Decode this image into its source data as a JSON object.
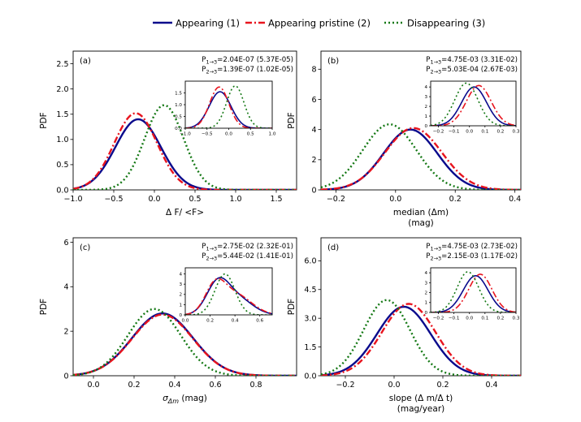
{
  "legend": {
    "placement": "top-center",
    "entries": [
      {
        "label": "Appearing (1)",
        "color": "#0a0a8c",
        "style": "solid"
      },
      {
        "label": "Appearing pristine (2)",
        "color": "#e8141e",
        "style": "dashdot"
      },
      {
        "label": "Disappearing (3)",
        "color": "#147814",
        "style": "dotted"
      }
    ]
  },
  "chart_data": [
    {
      "id": "a",
      "type": "line",
      "panel_label": "(a)",
      "xlabel": "Δ F/ <F>",
      "xlabel2": "",
      "ylabel": "PDF",
      "xlim": [
        -1.0,
        1.75
      ],
      "ylim": [
        0,
        2.75
      ],
      "xticks": [
        -1.0,
        -0.5,
        0.0,
        0.5,
        1.0,
        1.5
      ],
      "xtick_labels": [
        "−1.0",
        "−0.5",
        "0.0",
        "0.5",
        "1.0",
        "1.5"
      ],
      "yticks": [
        0,
        0.5,
        1.0,
        1.5,
        2.0,
        2.5
      ],
      "ytick_labels": [
        "0.0",
        "0.5",
        "1.0",
        "1.5",
        "2.0",
        "2.5"
      ],
      "stats": [
        {
          "pair": "1→3",
          "value": "=2.04E-07 (5.37E-05)"
        },
        {
          "pair": "2→3",
          "value": "=1.39E-07 (1.02E-05)"
        }
      ],
      "series": [
        {
          "name": "Appearing (1)",
          "components": [
            {
              "mu": -0.2,
              "sigma": 0.28,
              "amp": 1.4
            }
          ]
        },
        {
          "name": "Appearing pristine (2)",
          "components": [
            {
              "mu": -0.23,
              "sigma": 0.265,
              "amp": 1.52
            }
          ]
        },
        {
          "name": "Disappearing (3)",
          "components": [
            {
              "mu": 0.12,
              "sigma": 0.24,
              "amp": 1.68
            }
          ]
        }
      ],
      "inset": {
        "xlim": [
          -1.0,
          1.0
        ],
        "ylim": [
          0,
          2.0
        ],
        "xticks": [
          -1.0,
          -0.5,
          0.0,
          0.5,
          1.0
        ],
        "xtick_labels": [
          "−1.0",
          "−0.5",
          "0.0",
          "0.5",
          "1.0"
        ],
        "yticks": [
          0,
          0.5,
          1.0,
          1.5
        ],
        "ytick_labels": [
          "0.0",
          "0.5",
          "1.0",
          "1.5"
        ],
        "series": [
          {
            "name": "Appearing (1)",
            "components": [
              {
                "mu": -0.2,
                "sigma": 0.25,
                "amp": 1.55
              }
            ]
          },
          {
            "name": "Appearing pristine (2)",
            "components": [
              {
                "mu": -0.22,
                "sigma": 0.22,
                "amp": 1.75
              }
            ]
          },
          {
            "name": "Disappearing (3)",
            "components": [
              {
                "mu": 0.15,
                "sigma": 0.2,
                "amp": 1.8
              }
            ]
          }
        ]
      }
    },
    {
      "id": "b",
      "type": "line",
      "panel_label": "(b)",
      "xlabel": "median (Δm)",
      "xlabel2": "(mag)",
      "ylabel": "PDF",
      "xlim": [
        -0.25,
        0.42
      ],
      "ylim": [
        0,
        9.2
      ],
      "xticks": [
        -0.2,
        0.0,
        0.2,
        0.4
      ],
      "xtick_labels": [
        "−0.2",
        "0.0",
        "0.2",
        "0.4"
      ],
      "yticks": [
        0,
        2,
        4,
        6,
        8
      ],
      "ytick_labels": [
        "0",
        "2",
        "4",
        "6",
        "8"
      ],
      "stats": [
        {
          "pair": "1→3",
          "value": "=4.75E-03 (3.31E-02)"
        },
        {
          "pair": "2→3",
          "value": "=5.03E-04 (2.67E-03)"
        }
      ],
      "series": [
        {
          "name": "Appearing (1)",
          "components": [
            {
              "mu": 0.05,
              "sigma": 0.09,
              "amp": 4.0
            }
          ]
        },
        {
          "name": "Appearing pristine (2)",
          "components": [
            {
              "mu": 0.06,
              "sigma": 0.095,
              "amp": 4.1
            }
          ]
        },
        {
          "name": "Disappearing (3)",
          "components": [
            {
              "mu": -0.02,
              "sigma": 0.09,
              "amp": 4.35
            }
          ]
        }
      ],
      "inset": {
        "xlim": [
          -0.25,
          0.3
        ],
        "ylim": [
          0,
          4.6
        ],
        "xticks": [
          -0.2,
          -0.1,
          0.0,
          0.1,
          0.2,
          0.3
        ],
        "xtick_labels": [
          "−0.2",
          "−0.1",
          "0.0",
          "0.1",
          "0.2",
          "0.3"
        ],
        "yticks": [
          0,
          1,
          2,
          3,
          4
        ],
        "ytick_labels": [
          "0",
          "1",
          "2",
          "3",
          "4"
        ],
        "series": [
          {
            "name": "Appearing (1)",
            "components": [
              {
                "mu": 0.03,
                "sigma": 0.08,
                "amp": 4.0
              }
            ]
          },
          {
            "name": "Appearing pristine (2)",
            "components": [
              {
                "mu": 0.06,
                "sigma": 0.08,
                "amp": 4.15
              }
            ]
          },
          {
            "name": "Disappearing (3)",
            "components": [
              {
                "mu": -0.02,
                "sigma": 0.075,
                "amp": 4.4
              }
            ]
          }
        ]
      }
    },
    {
      "id": "c",
      "type": "line",
      "panel_label": "(c)",
      "xlabel": "σΔm (mag)",
      "xlabel2": "",
      "ylabel": "PDF",
      "xlim": [
        -0.1,
        1.0
      ],
      "ylim": [
        0,
        6.2
      ],
      "xticks": [
        0.0,
        0.2,
        0.4,
        0.6,
        0.8
      ],
      "xtick_labels": [
        "0.0",
        "0.2",
        "0.4",
        "0.6",
        "0.8"
      ],
      "yticks": [
        0,
        2,
        4,
        6
      ],
      "ytick_labels": [
        "0",
        "2",
        "4",
        "6"
      ],
      "stats": [
        {
          "pair": "1→3",
          "value": "=2.75E-02 (2.32E-01)"
        },
        {
          "pair": "2→3",
          "value": "=5.44E-02 (1.41E-01)"
        }
      ],
      "series": [
        {
          "name": "Appearing (1)",
          "components": [
            {
              "mu": 0.34,
              "sigma": 0.15,
              "amp": 2.8
            }
          ]
        },
        {
          "name": "Appearing pristine (2)",
          "components": [
            {
              "mu": 0.34,
              "sigma": 0.15,
              "amp": 2.75
            }
          ]
        },
        {
          "name": "Disappearing (3)",
          "components": [
            {
              "mu": 0.3,
              "sigma": 0.13,
              "amp": 3.0
            }
          ]
        }
      ],
      "inset": {
        "xlim": [
          0.0,
          0.7
        ],
        "ylim": [
          0,
          4.6
        ],
        "xticks": [
          0.0,
          0.2,
          0.4,
          0.6
        ],
        "xtick_labels": [
          "0.0",
          "0.2",
          "0.4",
          "0.6"
        ],
        "yticks": [
          0,
          1,
          2,
          3,
          4
        ],
        "ytick_labels": [
          "0",
          "1",
          "2",
          "3",
          "4"
        ],
        "series": [
          {
            "name": "Appearing (1)",
            "components": [
              {
                "mu": 0.26,
                "sigma": 0.09,
                "amp": 2.9
              },
              {
                "mu": 0.42,
                "sigma": 0.12,
                "amp": 1.6
              }
            ]
          },
          {
            "name": "Appearing pristine (2)",
            "components": [
              {
                "mu": 0.24,
                "sigma": 0.08,
                "amp": 2.5
              },
              {
                "mu": 0.4,
                "sigma": 0.13,
                "amp": 2.0
              }
            ]
          },
          {
            "name": "Disappearing (3)",
            "components": [
              {
                "mu": 0.32,
                "sigma": 0.08,
                "amp": 4.0
              }
            ]
          }
        ]
      }
    },
    {
      "id": "d",
      "type": "line",
      "panel_label": "(d)",
      "xlabel": "slope (Δ m/Δ t)",
      "xlabel2": "(mag/year)",
      "ylabel": "PDF",
      "xlim": [
        -0.3,
        0.52
      ],
      "ylim": [
        0,
        7.2
      ],
      "xticks": [
        -0.2,
        0.0,
        0.2,
        0.4
      ],
      "xtick_labels": [
        "−0.2",
        "0.0",
        "0.2",
        "0.4"
      ],
      "yticks": [
        0,
        1.5,
        3.0,
        4.5,
        6.0
      ],
      "ytick_labels": [
        "0.0",
        "1.5",
        "3.0",
        "4.5",
        "6.0"
      ],
      "stats": [
        {
          "pair": "1→3",
          "value": "=4.75E-03 (2.73E-02)"
        },
        {
          "pair": "2→3",
          "value": "=2.15E-03 (1.17E-02)"
        }
      ],
      "series": [
        {
          "name": "Appearing (1)",
          "components": [
            {
              "mu": 0.04,
              "sigma": 0.11,
              "amp": 3.6
            }
          ]
        },
        {
          "name": "Appearing pristine (2)",
          "components": [
            {
              "mu": 0.06,
              "sigma": 0.11,
              "amp": 3.75
            }
          ]
        },
        {
          "name": "Disappearing (3)",
          "components": [
            {
              "mu": -0.03,
              "sigma": 0.095,
              "amp": 3.95
            }
          ]
        }
      ],
      "inset": {
        "xlim": [
          -0.25,
          0.3
        ],
        "ylim": [
          0,
          4.5
        ],
        "xticks": [
          -0.2,
          -0.1,
          0.0,
          0.1,
          0.2,
          0.3
        ],
        "xtick_labels": [
          "−0.2",
          "−0.1",
          "0.0",
          "0.1",
          "0.2",
          "0.3"
        ],
        "yticks": [
          0,
          1,
          2,
          3,
          4
        ],
        "ytick_labels": [
          "0",
          "1",
          "2",
          "3",
          "4"
        ],
        "series": [
          {
            "name": "Appearing (1)",
            "components": [
              {
                "mu": 0.04,
                "sigma": 0.08,
                "amp": 3.7
              }
            ]
          },
          {
            "name": "Appearing pristine (2)",
            "components": [
              {
                "mu": 0.07,
                "sigma": 0.075,
                "amp": 3.85
              }
            ]
          },
          {
            "name": "Disappearing (3)",
            "components": [
              {
                "mu": -0.01,
                "sigma": 0.07,
                "amp": 4.1
              }
            ]
          }
        ]
      }
    }
  ]
}
